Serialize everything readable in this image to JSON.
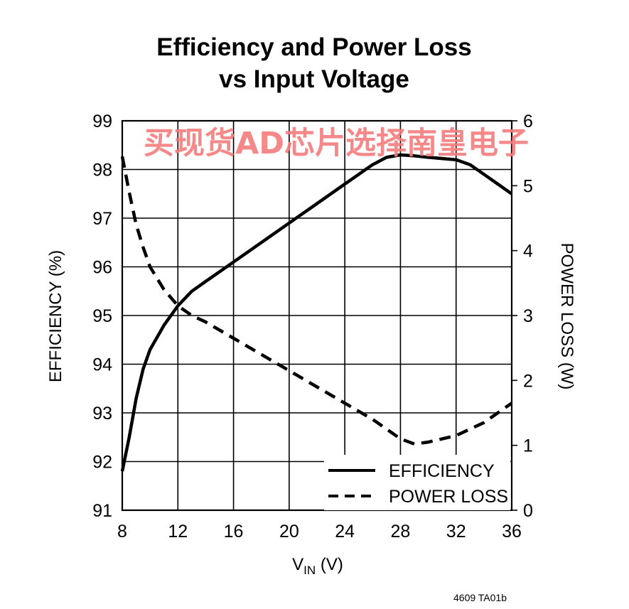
{
  "chart_data": {
    "type": "line",
    "title_line1": "Efficiency and Power Loss",
    "title_line2": "vs Input Voltage",
    "xlabel_main": "V",
    "xlabel_sub": "IN",
    "xlabel_unit": " (V)",
    "ylabel_left": "EFFICIENCY (%)",
    "ylabel_right": "POWER LOSS (W)",
    "xlim": [
      8,
      36
    ],
    "ylim_left": [
      91,
      99
    ],
    "ylim_right": [
      0,
      6
    ],
    "x_ticks": [
      "8",
      "12",
      "16",
      "20",
      "24",
      "28",
      "32",
      "36"
    ],
    "y_left_ticks": [
      "91",
      "92",
      "93",
      "94",
      "95",
      "96",
      "97",
      "98",
      "99"
    ],
    "y_right_ticks": [
      "0",
      "1",
      "2",
      "3",
      "4",
      "5",
      "6"
    ],
    "grid": true,
    "legend_position": "bottom-right",
    "series": [
      {
        "name": "EFFICIENCY",
        "axis": "left",
        "style": "solid",
        "x": [
          8,
          8.5,
          9,
          9.5,
          10,
          11,
          12,
          13,
          14,
          16,
          18,
          20,
          22,
          24,
          26,
          27,
          28,
          29,
          30,
          32,
          33,
          34,
          35,
          36
        ],
        "y": [
          91.8,
          92.5,
          93.3,
          93.9,
          94.3,
          94.8,
          95.2,
          95.5,
          95.7,
          96.1,
          96.5,
          96.9,
          97.3,
          97.7,
          98.1,
          98.25,
          98.3,
          98.28,
          98.25,
          98.2,
          98.1,
          97.9,
          97.7,
          97.5
        ]
      },
      {
        "name": "POWER LOSS",
        "axis": "right",
        "style": "dashed",
        "x": [
          8,
          8.5,
          9,
          9.5,
          10,
          11,
          12,
          13,
          14,
          16,
          18,
          20,
          22,
          24,
          26,
          27,
          28,
          29,
          30,
          32,
          33,
          34,
          35,
          36
        ],
        "y": [
          5.45,
          4.9,
          4.4,
          4.05,
          3.75,
          3.4,
          3.15,
          3.0,
          2.9,
          2.65,
          2.4,
          2.15,
          1.9,
          1.65,
          1.4,
          1.25,
          1.1,
          1.02,
          1.05,
          1.15,
          1.25,
          1.35,
          1.5,
          1.65
        ]
      }
    ]
  },
  "watermark": "买现货AD芯片选择南皇电子",
  "figure_code": "4609 TA01b"
}
